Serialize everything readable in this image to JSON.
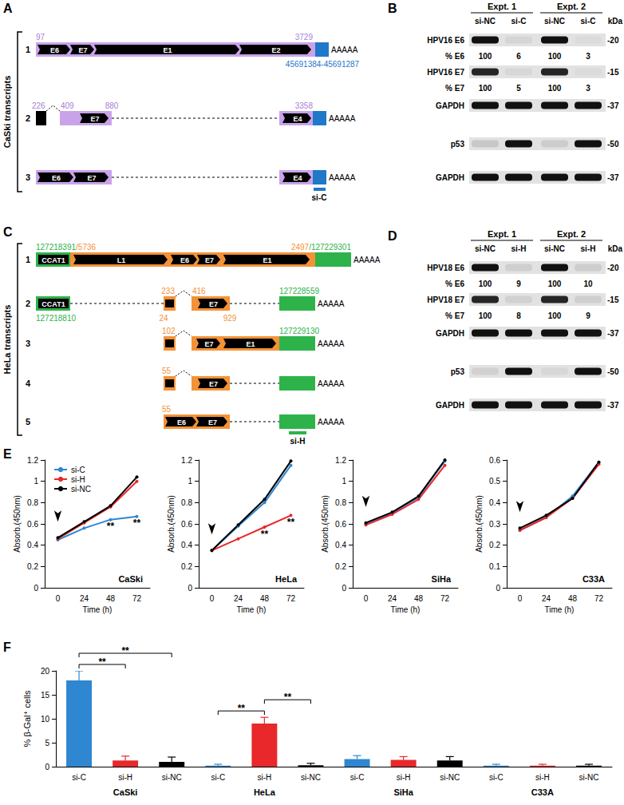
{
  "chart_data": [
    {
      "type": "line",
      "panel_label": "E",
      "title": "CaSki",
      "x_label": "Time (h)",
      "y_label": "Absorb.(450nm)",
      "categories": [
        "0",
        "24",
        "48",
        "72"
      ],
      "series": [
        {
          "name": "si-C",
          "color": "#2f86d1",
          "values": [
            0.45,
            0.56,
            0.64,
            0.67
          ]
        },
        {
          "name": "si-H",
          "color": "#e8282b",
          "values": [
            0.46,
            0.61,
            0.76,
            1.0
          ]
        },
        {
          "name": "si-NC",
          "color": "#000000",
          "values": [
            0.47,
            0.62,
            0.77,
            1.04
          ]
        }
      ],
      "ylim": [
        0,
        1.2
      ],
      "yticks": [
        0,
        0.2,
        0.4,
        0.6,
        0.8,
        1,
        1.2
      ],
      "grid": false,
      "legend": "upper left",
      "marker": "circle",
      "annotations": [
        {
          "category": "48",
          "series": "si-C",
          "text": "**"
        },
        {
          "category": "72",
          "series": "si-C",
          "text": "**"
        }
      ]
    },
    {
      "type": "line",
      "title": "HeLa",
      "x_label": "Time (h)",
      "y_label": "Absorb.(450nm)",
      "categories": [
        "0",
        "24",
        "48",
        "72"
      ],
      "series": [
        {
          "name": "si-C",
          "color": "#2f86d1",
          "values": [
            0.35,
            0.58,
            0.8,
            1.15
          ]
        },
        {
          "name": "si-H",
          "color": "#e8282b",
          "values": [
            0.35,
            0.46,
            0.57,
            0.68
          ]
        },
        {
          "name": "si-NC",
          "color": "#000000",
          "values": [
            0.35,
            0.59,
            0.83,
            1.19
          ]
        }
      ],
      "ylim": [
        0,
        1.2
      ],
      "yticks": [
        0,
        0.2,
        0.4,
        0.6,
        0.8,
        1,
        1.2
      ],
      "grid": false,
      "marker": "circle",
      "annotations": [
        {
          "category": "48",
          "series": "si-H",
          "text": "**"
        },
        {
          "category": "72",
          "series": "si-H",
          "text": "**"
        }
      ]
    },
    {
      "type": "line",
      "title": "SiHa",
      "x_label": "Time (h)",
      "y_label": "Absorb.(450nm)",
      "categories": [
        "0",
        "24",
        "48",
        "72"
      ],
      "series": [
        {
          "name": "si-C",
          "color": "#2f86d1",
          "values": [
            0.6,
            0.7,
            0.85,
            1.19
          ]
        },
        {
          "name": "si-H",
          "color": "#e8282b",
          "values": [
            0.59,
            0.69,
            0.83,
            1.15
          ]
        },
        {
          "name": "si-NC",
          "color": "#000000",
          "values": [
            0.61,
            0.71,
            0.86,
            1.2
          ]
        }
      ],
      "ylim": [
        0,
        1.2
      ],
      "yticks": [
        0,
        0.2,
        0.4,
        0.6,
        0.8,
        1,
        1.2
      ],
      "grid": false,
      "marker": "circle"
    },
    {
      "type": "line",
      "title": "C33A",
      "x_label": "Time (h)",
      "y_label": "Absorb.(450nm)",
      "categories": [
        "0",
        "24",
        "48",
        "72"
      ],
      "series": [
        {
          "name": "si-C",
          "color": "#2f86d1",
          "values": [
            0.27,
            0.33,
            0.43,
            0.59
          ]
        },
        {
          "name": "si-H",
          "color": "#e8282b",
          "values": [
            0.27,
            0.33,
            0.42,
            0.58
          ]
        },
        {
          "name": "si-NC",
          "color": "#000000",
          "values": [
            0.28,
            0.34,
            0.42,
            0.59
          ]
        }
      ],
      "ylim": [
        0,
        0.6
      ],
      "yticks": [
        0,
        0.1,
        0.2,
        0.3,
        0.4,
        0.5,
        0.6
      ],
      "grid": false,
      "marker": "circle"
    },
    {
      "type": "bar",
      "panel_label": "F",
      "y_label": "% β-Gal⁺ cells",
      "categories": [
        "CaSki",
        "HeLa",
        "SiHa",
        "C33A"
      ],
      "series": [
        {
          "name": "si-C",
          "color": "#2f86d1",
          "values": [
            18,
            0.2,
            1.6,
            0.2
          ],
          "errors": [
            2,
            0.3,
            0.7,
            0.3
          ]
        },
        {
          "name": "si-H",
          "color": "#e8282b",
          "values": [
            1.3,
            9,
            1.4,
            0.2
          ],
          "errors": [
            0.9,
            1.3,
            0.7,
            0.3
          ]
        },
        {
          "name": "si-NC",
          "color": "#000000",
          "values": [
            1.0,
            0.3,
            1.3,
            0.2
          ],
          "errors": [
            1.0,
            0.4,
            0.8,
            0.3
          ]
        }
      ],
      "ylim": [
        0,
        20
      ],
      "yticks": [
        0,
        5,
        10,
        15,
        20
      ],
      "grid": false,
      "annotations": [
        {
          "category": "CaSki",
          "from": "si-C",
          "to": "si-H",
          "text": "**"
        },
        {
          "category": "CaSki",
          "from": "si-C",
          "to": "si-NC",
          "text": "**"
        },
        {
          "category": "HeLa",
          "from": "si-C",
          "to": "si-H",
          "text": "**"
        },
        {
          "category": "HeLa",
          "from": "si-H",
          "to": "si-NC",
          "text": "**"
        }
      ]
    }
  ],
  "panels": {
    "A": {
      "letter": "A",
      "side_label": "CaSki transcripts",
      "tail": "AAAAA",
      "sirna": "si-C",
      "transcripts": [
        {
          "number": "1",
          "exons": [
            "E6",
            "E7",
            "E1",
            "E2"
          ],
          "coords": [
            "97",
            "3729",
            "45691384-45691287"
          ]
        },
        {
          "number": "2",
          "exons": [
            "E7",
            "E4"
          ],
          "coords": [
            "226",
            "409",
            "880",
            "3358"
          ]
        },
        {
          "number": "3",
          "exons": [
            "E6",
            "E7",
            "E4"
          ],
          "coords": []
        }
      ]
    },
    "B": {
      "letter": "B",
      "experiments": [
        "Expt. 1",
        "Expt. 2"
      ],
      "lanes": [
        "si-NC",
        "si-C",
        "si-NC",
        "si-C"
      ],
      "kda_title": "kDa",
      "rows": [
        {
          "label": "HPV16 E6",
          "intensity": [
            1,
            0.06,
            1,
            0.03
          ],
          "kda": "-20"
        },
        {
          "label": "% E6",
          "values": [
            100,
            6,
            100,
            3
          ]
        },
        {
          "label": "HPV16 E7",
          "intensity": [
            0.9,
            0.05,
            0.9,
            0.03
          ],
          "kda": "-15"
        },
        {
          "label": "% E7",
          "values": [
            100,
            5,
            100,
            3
          ]
        },
        {
          "label": "GAPDH",
          "intensity": [
            1,
            1,
            1,
            1
          ],
          "kda": "-37"
        },
        {
          "label": "p53",
          "intensity": [
            0.12,
            1,
            0.1,
            1
          ],
          "kda": "-50"
        },
        {
          "label": "GAPDH",
          "intensity": [
            1,
            1,
            1,
            1
          ],
          "kda": "-37"
        }
      ]
    },
    "C": {
      "letter": "C",
      "side_label": "HeLa transcripts",
      "tail": "AAAAA",
      "sirna": "si-H",
      "transcripts": [
        {
          "number": "1",
          "exons": [
            "CCAT1",
            "L1",
            "E6",
            "E7",
            "E1"
          ],
          "coords": [
            "127218391/5736",
            "2497/127229301"
          ]
        },
        {
          "number": "2",
          "exons": [
            "CCAT1",
            "E7"
          ],
          "coords": [
            "127218810",
            "233",
            "416",
            "24",
            "929",
            "127228559"
          ]
        },
        {
          "number": "3",
          "exons": [
            "E7",
            "E1"
          ],
          "coords": [
            "102",
            "127229130"
          ]
        },
        {
          "number": "4",
          "exons": [
            "E7"
          ],
          "coords": [
            "55"
          ]
        },
        {
          "number": "5",
          "exons": [
            "E6",
            "E7"
          ],
          "coords": [
            "55"
          ]
        }
      ]
    },
    "D": {
      "letter": "D",
      "experiments": [
        "Expt. 1",
        "Expt. 2"
      ],
      "lanes": [
        "si-NC",
        "si-H",
        "si-NC",
        "si-H"
      ],
      "kda_title": "kDa",
      "rows": [
        {
          "label": "HPV18 E6",
          "intensity": [
            1,
            0.09,
            1,
            0.1
          ],
          "kda": "-20"
        },
        {
          "label": "% E6",
          "values": [
            100,
            9,
            100,
            10
          ]
        },
        {
          "label": "HPV18 E7",
          "intensity": [
            0.9,
            0.08,
            0.9,
            0.09
          ],
          "kda": "-15"
        },
        {
          "label": "% E7",
          "values": [
            100,
            8,
            100,
            9
          ]
        },
        {
          "label": "GAPDH",
          "intensity": [
            1,
            1,
            1,
            1
          ],
          "kda": "-37"
        },
        {
          "label": "p53",
          "intensity": [
            0.08,
            1,
            0.05,
            1
          ],
          "kda": "-50"
        },
        {
          "label": "GAPDH",
          "intensity": [
            1,
            1,
            1,
            1
          ],
          "kda": "-37"
        }
      ]
    }
  }
}
